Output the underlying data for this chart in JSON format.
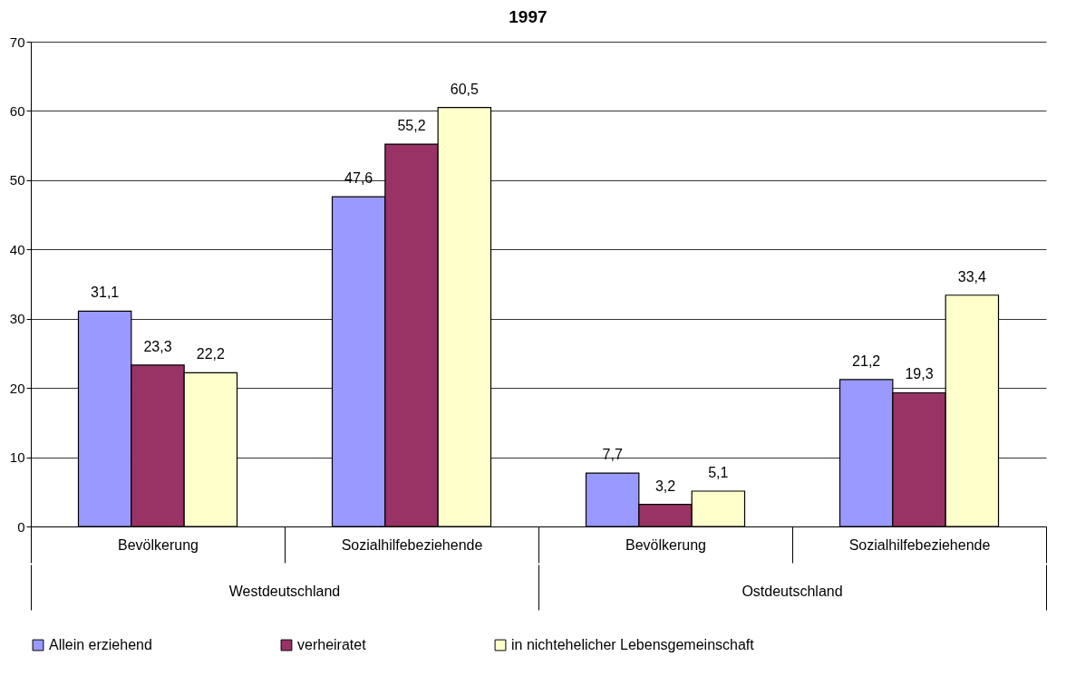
{
  "chart_data": {
    "type": "bar",
    "title": "1997",
    "categories": [
      "Bevölkerung",
      "Sozialhilfebeziehende",
      "Bevölkerung",
      "Sozialhilfebeziehende"
    ],
    "series": [
      {
        "name": "Allein erziehend",
        "color": "#9999ff",
        "values": [
          31.1,
          47.6,
          7.7,
          21.2
        ],
        "value_labels": [
          "31,1",
          "47,6",
          "7,7",
          "21,2"
        ]
      },
      {
        "name": "verheiratet",
        "color": "#993366",
        "values": [
          23.3,
          55.2,
          3.2,
          19.3
        ],
        "value_labels": [
          "23,3",
          "55,2",
          "3,2",
          "19,3"
        ]
      },
      {
        "name": "in nichtehelicher Lebensgemeinschaft",
        "color": "#ffffcc",
        "values": [
          22.2,
          60.5,
          5.1,
          33.4
        ],
        "value_labels": [
          "22,2",
          "60,5",
          "5,1",
          "33,4"
        ]
      }
    ],
    "annotations": [
      "Westdeutschland",
      "Ostdeutschland"
    ],
    "ylim": [
      0,
      70
    ],
    "yticks": [
      0,
      10,
      20,
      30,
      40,
      50,
      60,
      70
    ],
    "grid": "y",
    "legend": "bottom"
  }
}
